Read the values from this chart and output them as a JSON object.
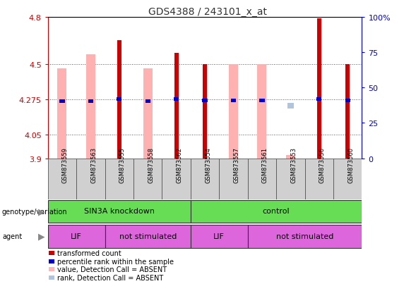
{
  "title": "GDS4388 / 243101_x_at",
  "samples": [
    "GSM873559",
    "GSM873563",
    "GSM873555",
    "GSM873558",
    "GSM873562",
    "GSM873554",
    "GSM873557",
    "GSM873561",
    "GSM873553",
    "GSM873556",
    "GSM873560"
  ],
  "ylim_left": [
    3.9,
    4.8
  ],
  "ylim_right": [
    0,
    100
  ],
  "yticks_left": [
    3.9,
    4.05,
    4.275,
    4.5,
    4.8
  ],
  "ytick_labels_left": [
    "3.9",
    "4.05",
    "4.275",
    "4.5",
    "4.8"
  ],
  "yticks_right": [
    0,
    25,
    50,
    75,
    100
  ],
  "ytick_labels_right": [
    "0",
    "25",
    "50",
    "75",
    "100%"
  ],
  "red_bars": [
    null,
    null,
    4.65,
    null,
    4.57,
    4.5,
    null,
    null,
    null,
    4.79,
    4.5
  ],
  "pink_bars": [
    4.47,
    4.56,
    null,
    4.47,
    null,
    null,
    4.5,
    4.5,
    3.92,
    null,
    null
  ],
  "blue_squares_left": [
    4.265,
    4.265,
    4.275,
    4.265,
    4.275,
    4.27,
    4.27,
    4.27,
    null,
    4.275,
    4.27
  ],
  "absent_rank_squares": [
    null,
    null,
    null,
    null,
    null,
    null,
    null,
    null,
    37,
    null,
    null
  ],
  "bar_bottom": 3.9,
  "legend_items": [
    {
      "color": "#cc0000",
      "label": "transformed count"
    },
    {
      "color": "#0000cc",
      "label": "percentile rank within the sample"
    },
    {
      "color": "#ffb6b6",
      "label": "value, Detection Call = ABSENT"
    },
    {
      "color": "#b0c4de",
      "label": "rank, Detection Call = ABSENT"
    }
  ],
  "left_axis_color": "#cc0000",
  "right_axis_color": "#0000cc",
  "bg_color": "#ffffff"
}
